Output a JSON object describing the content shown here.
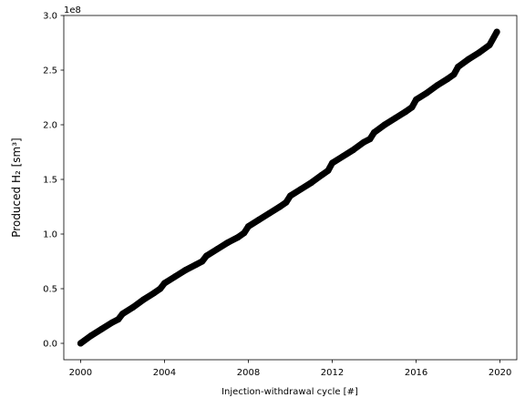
{
  "chart_data": {
    "type": "line",
    "xlabel": "Injection-withdrawal cycle [#]",
    "ylabel": "Produced H₂ [sm³]",
    "y_offset_label": "1e8",
    "xlim": [
      1999.2,
      2020.8
    ],
    "ylim": [
      -15000000,
      300000000
    ],
    "x_ticks": [
      2000,
      2004,
      2008,
      2012,
      2016,
      2020
    ],
    "x_tick_labels": [
      "2000",
      "2004",
      "2008",
      "2012",
      "2016",
      "2020"
    ],
    "y_ticks": [
      0,
      50000000,
      100000000,
      150000000,
      200000000,
      250000000,
      300000000
    ],
    "y_tick_labels": [
      "0.0",
      "0.5",
      "1.0",
      "1.5",
      "2.0",
      "2.5",
      "3.0"
    ],
    "grid": false,
    "series": [
      {
        "color": "#000000",
        "marker": "thick-line",
        "x": [
          2000.0,
          2000.5,
          2001.0,
          2001.5,
          2001.8,
          2002.0,
          2002.5,
          2003.0,
          2003.5,
          2003.8,
          2004.0,
          2004.5,
          2005.0,
          2005.5,
          2005.8,
          2006.0,
          2006.5,
          2007.0,
          2007.5,
          2007.8,
          2008.0,
          2008.5,
          2009.0,
          2009.5,
          2009.8,
          2010.0,
          2010.5,
          2011.0,
          2011.5,
          2011.8,
          2012.0,
          2012.5,
          2013.0,
          2013.5,
          2013.8,
          2014.0,
          2014.5,
          2015.0,
          2015.5,
          2015.8,
          2016.0,
          2016.5,
          2017.0,
          2017.5,
          2017.8,
          2018.0,
          2018.5,
          2019.0,
          2019.5,
          2019.85
        ],
        "y": [
          0,
          7000000,
          13000000,
          19000000,
          22000000,
          27000000,
          33000000,
          40000000,
          46000000,
          50000000,
          55000000,
          61000000,
          67000000,
          72000000,
          75000000,
          80000000,
          86000000,
          92000000,
          97000000,
          101000000,
          107000000,
          113000000,
          119000000,
          125000000,
          129000000,
          135000000,
          141000000,
          147000000,
          154000000,
          158000000,
          165000000,
          171000000,
          177000000,
          184000000,
          187000000,
          193000000,
          200000000,
          206000000,
          212000000,
          216000000,
          223000000,
          229000000,
          236000000,
          242000000,
          246000000,
          253000000,
          260000000,
          266000000,
          273000000,
          285000000
        ]
      }
    ]
  }
}
